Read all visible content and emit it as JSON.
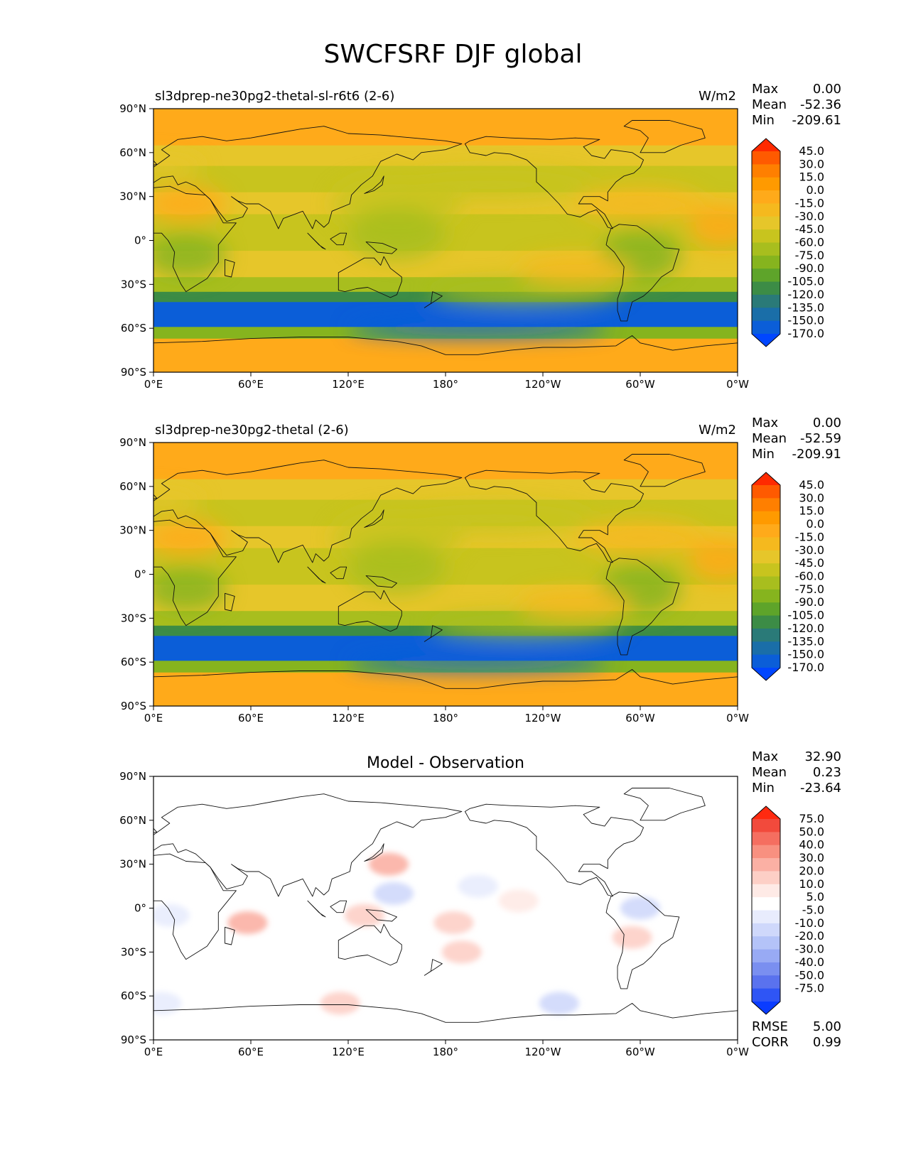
{
  "figure": {
    "title": "SWCFSRF DJF global"
  },
  "chart_data": [
    {
      "type": "heatmap",
      "title": "sl3dprep-ne30pg2-thetal-sl-r6t6 (2-6)",
      "units": "W/m2",
      "stats": {
        "max_label": "Max",
        "max": "0.00",
        "mean_label": "Mean",
        "mean": "-52.36",
        "min_label": "Min",
        "min": "-209.61"
      },
      "xticks": [
        "0°E",
        "60°E",
        "120°E",
        "180°",
        "120°W",
        "60°W",
        "0°W"
      ],
      "yticks": [
        "90°N",
        "60°N",
        "30°N",
        "0°",
        "30°S",
        "60°S",
        "90°S"
      ],
      "xlim": [
        0,
        360
      ],
      "ylim": [
        -90,
        90
      ],
      "colorbar": {
        "ticks": [
          "45.0",
          "30.0",
          "15.0",
          "0.0",
          "-15.0",
          "-30.0",
          "-45.0",
          "-60.0",
          "-75.0",
          "-90.0",
          "-105.0",
          "-120.0",
          "-135.0",
          "-150.0",
          "-170.0"
        ],
        "colors": [
          "#ff2a00",
          "#ff5a00",
          "#ff7f00",
          "#ff9a00",
          "#ffaa1a",
          "#f5b91e",
          "#e6c62a",
          "#c8c41e",
          "#a8be1e",
          "#86b41e",
          "#5ea42a",
          "#3c8c46",
          "#2a7a78",
          "#1a6ea8",
          "#0b5ed8",
          "#0046ff"
        ]
      },
      "zonal_bands": [
        {
          "lat": [
            90,
            62
          ],
          "value": -15
        },
        {
          "lat": [
            62,
            48
          ],
          "value": -40
        },
        {
          "lat": [
            48,
            30
          ],
          "value": -60
        },
        {
          "lat": [
            30,
            15
          ],
          "value": -40
        },
        {
          "lat": [
            15,
            -10
          ],
          "value": -50
        },
        {
          "lat": [
            -10,
            -28
          ],
          "value": -45
        },
        {
          "lat": [
            -28,
            -38
          ],
          "value": -65
        },
        {
          "lat": [
            -38,
            -45
          ],
          "value": -110
        },
        {
          "lat": [
            -45,
            -62
          ],
          "value": -160
        },
        {
          "lat": [
            -62,
            -70
          ],
          "value": -80
        },
        {
          "lat": [
            -70,
            -90
          ],
          "value": -10
        }
      ]
    },
    {
      "type": "heatmap",
      "title": "sl3dprep-ne30pg2-thetal (2-6)",
      "units": "W/m2",
      "stats": {
        "max_label": "Max",
        "max": "0.00",
        "mean_label": "Mean",
        "mean": "-52.59",
        "min_label": "Min",
        "min": "-209.91"
      },
      "xticks": [
        "0°E",
        "60°E",
        "120°E",
        "180°",
        "120°W",
        "60°W",
        "0°W"
      ],
      "yticks": [
        "90°N",
        "60°N",
        "30°N",
        "0°",
        "30°S",
        "60°S",
        "90°S"
      ],
      "xlim": [
        0,
        360
      ],
      "ylim": [
        -90,
        90
      ],
      "colorbar": {
        "ticks": [
          "45.0",
          "30.0",
          "15.0",
          "0.0",
          "-15.0",
          "-30.0",
          "-45.0",
          "-60.0",
          "-75.0",
          "-90.0",
          "-105.0",
          "-120.0",
          "-135.0",
          "-150.0",
          "-170.0"
        ],
        "colors": [
          "#ff2a00",
          "#ff5a00",
          "#ff7f00",
          "#ff9a00",
          "#ffaa1a",
          "#f5b91e",
          "#e6c62a",
          "#c8c41e",
          "#a8be1e",
          "#86b41e",
          "#5ea42a",
          "#3c8c46",
          "#2a7a78",
          "#1a6ea8",
          "#0b5ed8",
          "#0046ff"
        ]
      },
      "zonal_bands": [
        {
          "lat": [
            90,
            62
          ],
          "value": -15
        },
        {
          "lat": [
            62,
            48
          ],
          "value": -40
        },
        {
          "lat": [
            48,
            30
          ],
          "value": -60
        },
        {
          "lat": [
            30,
            15
          ],
          "value": -40
        },
        {
          "lat": [
            15,
            -10
          ],
          "value": -50
        },
        {
          "lat": [
            -10,
            -28
          ],
          "value": -45
        },
        {
          "lat": [
            -28,
            -38
          ],
          "value": -65
        },
        {
          "lat": [
            -38,
            -45
          ],
          "value": -110
        },
        {
          "lat": [
            -45,
            -62
          ],
          "value": -160
        },
        {
          "lat": [
            -62,
            -70
          ],
          "value": -80
        },
        {
          "lat": [
            -70,
            -90
          ],
          "value": -10
        }
      ]
    },
    {
      "type": "heatmap",
      "title": "Model - Observation",
      "units": "",
      "stats": {
        "max_label": "Max",
        "max": "32.90",
        "mean_label": "Mean",
        "mean": "0.23",
        "min_label": "Min",
        "min": "-23.64"
      },
      "metrics": {
        "rmse_label": "RMSE",
        "rmse": "5.00",
        "corr_label": "CORR",
        "corr": "0.99"
      },
      "xticks": [
        "0°E",
        "60°E",
        "120°E",
        "180°",
        "120°W",
        "60°W",
        "0°W"
      ],
      "yticks": [
        "90°N",
        "60°N",
        "30°N",
        "0°",
        "30°S",
        "60°S",
        "90°S"
      ],
      "xlim": [
        0,
        360
      ],
      "ylim": [
        -90,
        90
      ],
      "colorbar": {
        "ticks": [
          "75.0",
          "50.0",
          "40.0",
          "30.0",
          "20.0",
          "10.0",
          "5.0",
          "-5.0",
          "-10.0",
          "-20.0",
          "-30.0",
          "-40.0",
          "-50.0",
          "-75.0"
        ],
        "colors": [
          "#ff2a10",
          "#f24a3c",
          "#f56e60",
          "#f89080",
          "#fbb0a4",
          "#fdcfc6",
          "#feeae6",
          "#ffffff",
          "#e8ecfd",
          "#cfd8fb",
          "#b4c3f8",
          "#98aaf4",
          "#7a8ff0",
          "#5a72ee",
          "#2f55f5",
          "#0a3cff"
        ]
      },
      "anomalies": [
        {
          "lon": 145,
          "lat": 30,
          "value": 25
        },
        {
          "lon": 148,
          "lat": 10,
          "value": -18
        },
        {
          "lon": 185,
          "lat": -10,
          "value": 12
        },
        {
          "lon": 190,
          "lat": -30,
          "value": 15
        },
        {
          "lon": 58,
          "lat": -10,
          "value": 20
        },
        {
          "lon": 295,
          "lat": -20,
          "value": 15
        },
        {
          "lon": 10,
          "lat": -5,
          "value": -10
        },
        {
          "lon": 130,
          "lat": -5,
          "value": 12
        },
        {
          "lon": 300,
          "lat": 0,
          "value": -12
        },
        {
          "lon": 225,
          "lat": 5,
          "value": 8
        },
        {
          "lon": 250,
          "lat": -65,
          "value": -12
        },
        {
          "lon": 5,
          "lat": -65,
          "value": -10
        },
        {
          "lon": 115,
          "lat": -65,
          "value": 10
        },
        {
          "lon": 200,
          "lat": 15,
          "value": -8
        }
      ]
    }
  ]
}
